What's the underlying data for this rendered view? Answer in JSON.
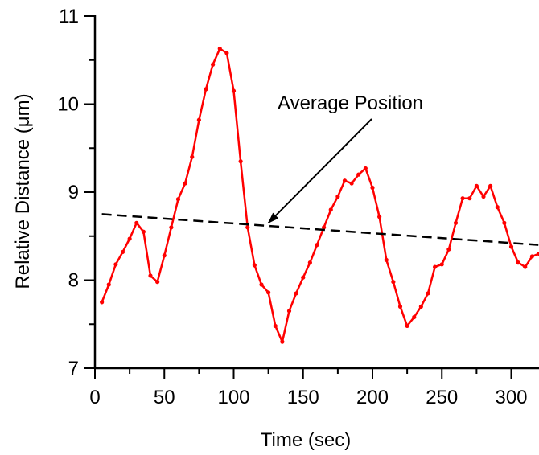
{
  "chart_data": {
    "type": "line",
    "xlabel": "Time (sec)",
    "ylabel": "Relative Distance  (μm)",
    "xlim": [
      0,
      320
    ],
    "ylim": [
      7,
      11
    ],
    "xticks": [
      0,
      50,
      100,
      150,
      200,
      250,
      300
    ],
    "yticks": [
      7,
      8,
      9,
      10,
      11
    ],
    "xtick_labels": [
      "0",
      "50",
      "100",
      "150",
      "200",
      "250",
      "300"
    ],
    "ytick_labels": [
      "7",
      "8",
      "9",
      "10",
      "11"
    ],
    "grid": false,
    "series": [
      {
        "color": "#ff0000",
        "style": "solid",
        "markers": true,
        "x": [
          5,
          10,
          15,
          20,
          25,
          30,
          35,
          40,
          45,
          50,
          55,
          60,
          65,
          70,
          75,
          80,
          85,
          90,
          95,
          100,
          105,
          110,
          115,
          120,
          125,
          130,
          135,
          140,
          145,
          150,
          155,
          160,
          165,
          170,
          175,
          180,
          185,
          190,
          195,
          200,
          205,
          210,
          215,
          220,
          225,
          230,
          235,
          240,
          245,
          250,
          255,
          260,
          265,
          270,
          275,
          280,
          285,
          290,
          295,
          300,
          305,
          310,
          315,
          320
        ],
        "y": [
          7.75,
          7.95,
          8.18,
          8.32,
          8.47,
          8.65,
          8.55,
          8.05,
          7.98,
          8.28,
          8.6,
          8.92,
          9.1,
          9.4,
          9.82,
          10.17,
          10.45,
          10.63,
          10.58,
          10.15,
          9.35,
          8.6,
          8.17,
          7.95,
          7.86,
          7.48,
          7.3,
          7.65,
          7.85,
          8.03,
          8.2,
          8.4,
          8.6,
          8.8,
          8.95,
          9.13,
          9.1,
          9.2,
          9.27,
          9.05,
          8.72,
          8.23,
          7.98,
          7.7,
          7.48,
          7.58,
          7.7,
          7.85,
          8.15,
          8.18,
          8.35,
          8.65,
          8.93,
          8.93,
          9.07,
          8.95,
          9.07,
          8.83,
          8.65,
          8.38,
          8.2,
          8.15,
          8.27,
          8.3
        ]
      },
      {
        "color": "#000000",
        "style": "dashed",
        "markers": false,
        "x": [
          5,
          320
        ],
        "y": [
          8.75,
          8.4
        ]
      }
    ],
    "annotations": [
      {
        "text": "Average Position",
        "arrow_to": [
          125,
          8.65
        ]
      }
    ]
  }
}
